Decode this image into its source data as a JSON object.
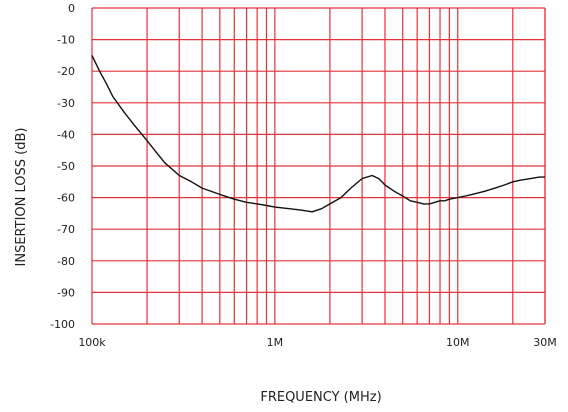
{
  "chart_data": {
    "type": "line",
    "title": "",
    "xlabel": "FREQUENCY (MHz)",
    "ylabel": "INSERTION LOSS (dB)",
    "xscale": "log",
    "xlim": [
      0.1,
      30
    ],
    "ylim": [
      -100,
      0
    ],
    "grid": true,
    "legend": "none",
    "colors": {
      "grid": "#e0343a",
      "line": "#111111",
      "text": "#222222",
      "background": "#ffffff"
    },
    "x_tick_labels": [
      {
        "value": 0.1,
        "label": "100k"
      },
      {
        "value": 1,
        "label": "1M"
      },
      {
        "value": 10,
        "label": "10M"
      },
      {
        "value": 30,
        "label": "30M"
      }
    ],
    "y_ticks": [
      0,
      -10,
      -20,
      -30,
      -40,
      -50,
      -60,
      -70,
      -80,
      -90,
      -100
    ],
    "series": [
      {
        "x": [
          0.1,
          0.11,
          0.12,
          0.13,
          0.15,
          0.17,
          0.2,
          0.22,
          0.25,
          0.3,
          0.35,
          0.4,
          0.5,
          0.6,
          0.7,
          0.8,
          0.9,
          1.0,
          1.2,
          1.4,
          1.6,
          1.8,
          2.0,
          2.3,
          2.6,
          3.0,
          3.4,
          3.7,
          4.0,
          4.5,
          5.0,
          5.5,
          6.0,
          6.5,
          7.0,
          7.5,
          8.0,
          8.5,
          9.0,
          10,
          11,
          12,
          14,
          16,
          18,
          20,
          22,
          25,
          28,
          30
        ],
        "y": [
          -15,
          -20,
          -24,
          -28,
          -33,
          -37,
          -42,
          -45,
          -49,
          -53,
          -55,
          -57,
          -59,
          -60.5,
          -61.5,
          -62,
          -62.5,
          -63,
          -63.5,
          -64,
          -64.5,
          -63.5,
          -62,
          -60,
          -57,
          -54,
          -53,
          -54,
          -56,
          -58,
          -59.5,
          -61,
          -61.5,
          -62,
          -62,
          -61.5,
          -61,
          -61,
          -60.5,
          -60,
          -59.5,
          -59,
          -58,
          -57,
          -56,
          -55,
          -54.5,
          -54,
          -53.5,
          -53.5
        ]
      }
    ]
  }
}
